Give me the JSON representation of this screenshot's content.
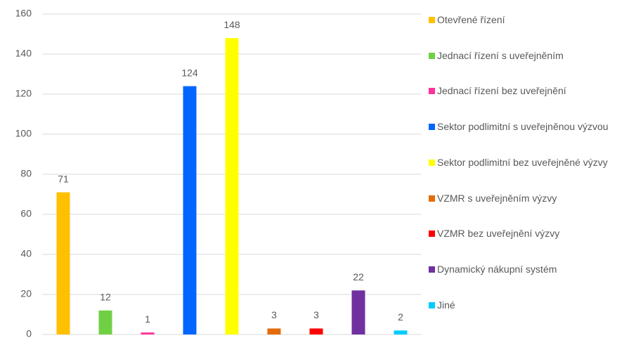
{
  "chart_data": {
    "type": "bar",
    "categories": [
      "Otevřené řízení",
      "Jednací řízení s uveřejněním",
      "Jednací řízení bez uveřejnění",
      "Sektor podlimitní s uveřejněnou výzvou",
      "Sektor podlimitní bez uveřejněné výzvy",
      "VZMR s uveřejněním výzvy",
      "VZMR bez uveřejnění výzvy",
      "Dynamický nákupní systém",
      "Jiné"
    ],
    "values": [
      71,
      12,
      1,
      124,
      148,
      3,
      3,
      22,
      2
    ],
    "colors": [
      "#ffc000",
      "#70d044",
      "#ff3399",
      "#0066ff",
      "#ffff00",
      "#e46c0a",
      "#ff0000",
      "#7030a0",
      "#00ccff"
    ],
    "ylim": [
      0,
      160
    ],
    "yticks": [
      0,
      20,
      40,
      60,
      80,
      100,
      120,
      140,
      160
    ],
    "grid": true,
    "legend": "right"
  }
}
